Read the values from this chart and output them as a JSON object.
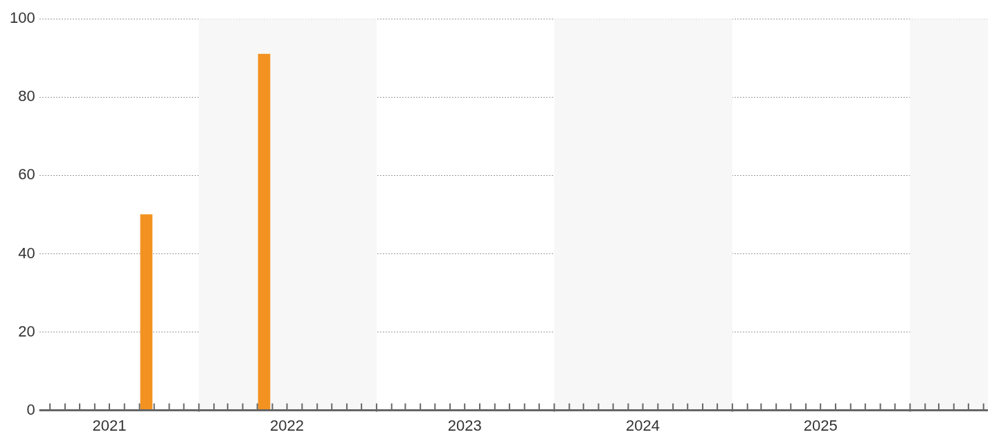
{
  "chart_data": {
    "type": "bar",
    "x": [
      "2021-09-15",
      "2022-05-15"
    ],
    "values": [
      50,
      91
    ],
    "color": "#f39221",
    "ylim": [
      0,
      100
    ],
    "yticks": [
      0,
      20,
      40,
      60,
      80,
      100
    ],
    "xlim": [
      "2021-02-07",
      "2026-06-10"
    ],
    "xticks": [
      {
        "value": "2021-03",
        "label": null
      },
      {
        "value": "2021-04",
        "label": null
      },
      {
        "value": "2021-05",
        "label": null
      },
      {
        "value": "2021-06",
        "label": null
      },
      {
        "value": "2021-07",
        "label": "2021"
      },
      {
        "value": "2021-08",
        "label": null
      },
      {
        "value": "2021-09",
        "label": null
      },
      {
        "value": "2021-10",
        "label": null
      },
      {
        "value": "2021-11",
        "label": null
      },
      {
        "value": "2021-12",
        "label": null
      },
      {
        "value": "2022-01",
        "label": null
      },
      {
        "value": "2022-02",
        "label": null
      },
      {
        "value": "2022-03",
        "label": null
      },
      {
        "value": "2022-04",
        "label": null
      },
      {
        "value": "2022-05",
        "label": null
      },
      {
        "value": "2022-06",
        "label": null
      },
      {
        "value": "2022-07",
        "label": "2022"
      },
      {
        "value": "2022-08",
        "label": null
      },
      {
        "value": "2022-09",
        "label": null
      },
      {
        "value": "2022-10",
        "label": null
      },
      {
        "value": "2022-11",
        "label": null
      },
      {
        "value": "2022-12",
        "label": null
      },
      {
        "value": "2023-01",
        "label": null
      },
      {
        "value": "2023-02",
        "label": null
      },
      {
        "value": "2023-03",
        "label": null
      },
      {
        "value": "2023-04",
        "label": null
      },
      {
        "value": "2023-05",
        "label": null
      },
      {
        "value": "2023-06",
        "label": null
      },
      {
        "value": "2023-07",
        "label": "2023"
      },
      {
        "value": "2023-08",
        "label": null
      },
      {
        "value": "2023-09",
        "label": null
      },
      {
        "value": "2023-10",
        "label": null
      },
      {
        "value": "2023-11",
        "label": null
      },
      {
        "value": "2023-12",
        "label": null
      },
      {
        "value": "2024-01",
        "label": null
      },
      {
        "value": "2024-02",
        "label": null
      },
      {
        "value": "2024-03",
        "label": null
      },
      {
        "value": "2024-04",
        "label": null
      },
      {
        "value": "2024-05",
        "label": null
      },
      {
        "value": "2024-06",
        "label": null
      },
      {
        "value": "2024-07",
        "label": "2024"
      },
      {
        "value": "2024-08",
        "label": null
      },
      {
        "value": "2024-09",
        "label": null
      },
      {
        "value": "2024-10",
        "label": null
      },
      {
        "value": "2024-11",
        "label": null
      },
      {
        "value": "2024-12",
        "label": null
      },
      {
        "value": "2025-01",
        "label": null
      },
      {
        "value": "2025-02",
        "label": null
      },
      {
        "value": "2025-03",
        "label": null
      },
      {
        "value": "2025-04",
        "label": null
      },
      {
        "value": "2025-05",
        "label": null
      },
      {
        "value": "2025-06",
        "label": null
      },
      {
        "value": "2025-07",
        "label": "2025"
      },
      {
        "value": "2025-08",
        "label": null
      },
      {
        "value": "2025-09",
        "label": null
      },
      {
        "value": "2025-10",
        "label": null
      },
      {
        "value": "2025-11",
        "label": null
      },
      {
        "value": "2025-12",
        "label": null
      },
      {
        "value": "2026-01",
        "label": null
      },
      {
        "value": "2026-02",
        "label": null
      },
      {
        "value": "2026-03",
        "label": null
      },
      {
        "value": "2026-04",
        "label": null
      },
      {
        "value": "2026-05",
        "label": null
      },
      {
        "value": "2026-06",
        "label": null
      }
    ],
    "bands": [
      {
        "axis": "x",
        "from": "2022-01",
        "to": "2023-01",
        "color": "#f7f7f7"
      },
      {
        "axis": "x",
        "from": "2024-01",
        "to": "2025-01",
        "color": "#f7f7f7"
      },
      {
        "axis": "x",
        "from": "2026-01",
        "to": "2026-06-10",
        "color": "#f7f7f7"
      }
    ],
    "grid": "y",
    "legend": false
  }
}
